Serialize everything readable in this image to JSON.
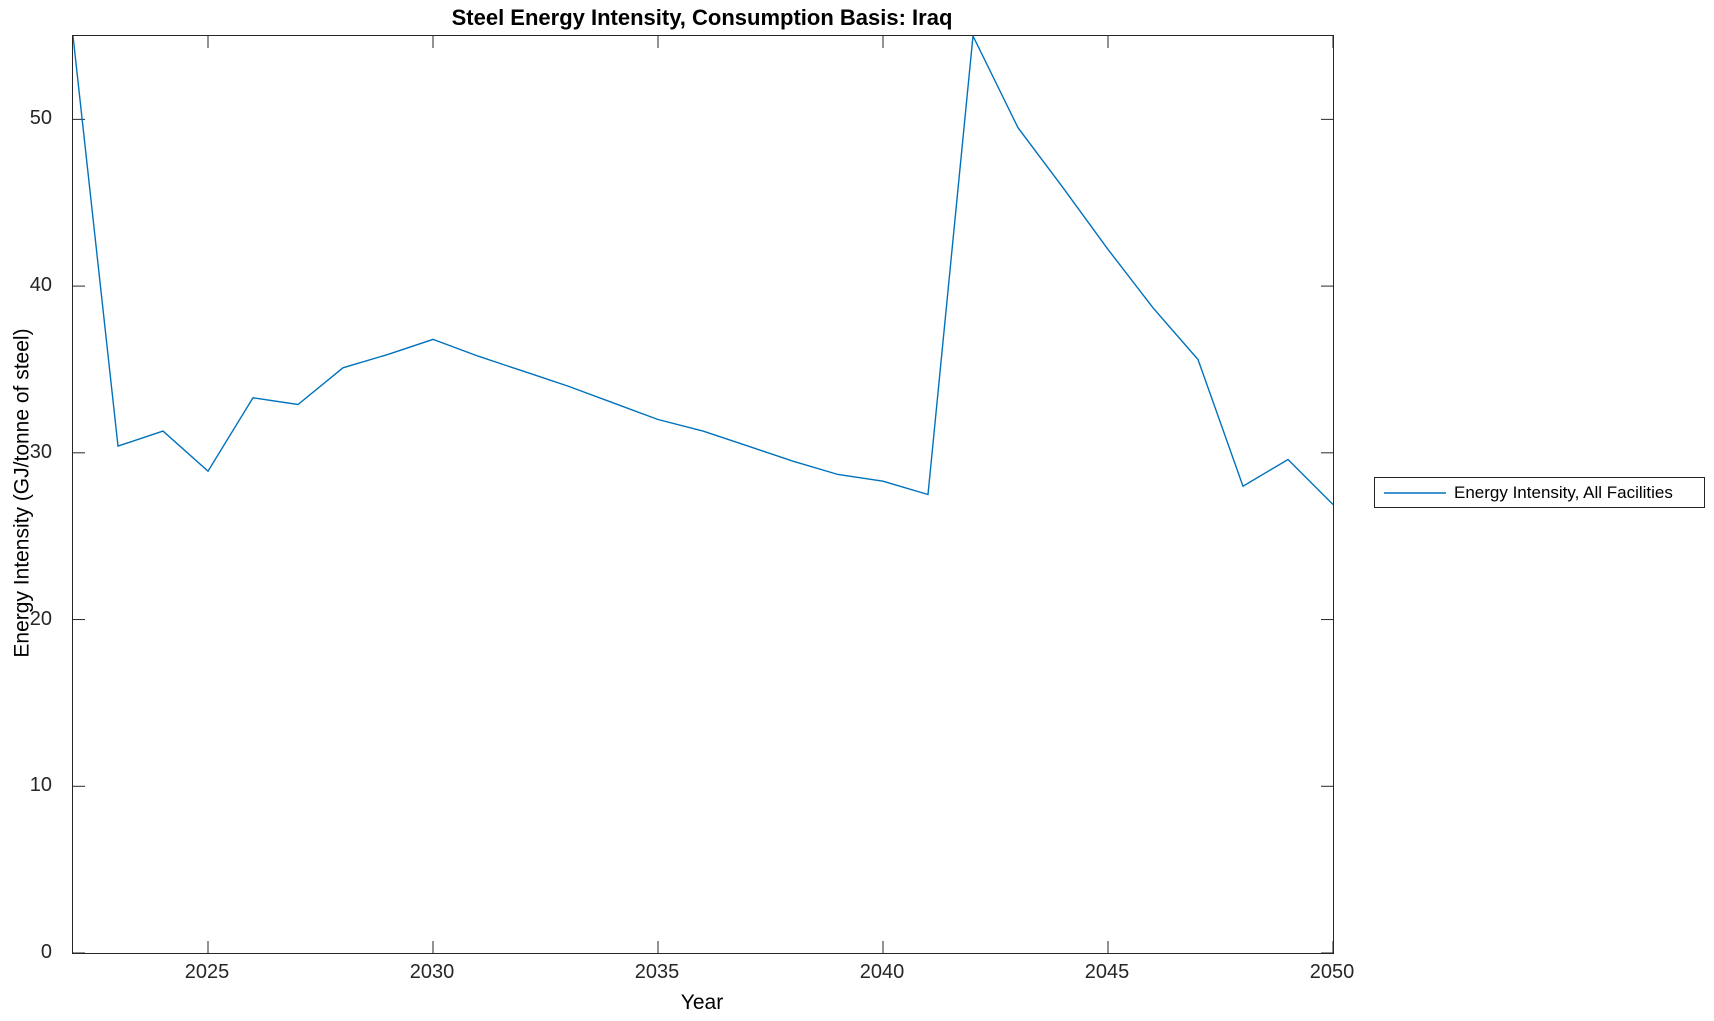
{
  "colors": {
    "line": "#0072BD",
    "axis": "#262626",
    "text": "#000000",
    "background": "#FFFFFF"
  },
  "chart_data": {
    "type": "line",
    "title": "Steel Energy Intensity, Consumption Basis: Iraq",
    "xlabel": "Year",
    "ylabel": "Energy Intensity (GJ/tonne of steel)",
    "xlim": [
      2022,
      2050
    ],
    "ylim": [
      0,
      55
    ],
    "xticks": [
      2025,
      2030,
      2035,
      2040,
      2045,
      2050
    ],
    "yticks": [
      0,
      10,
      20,
      30,
      40,
      50
    ],
    "grid": false,
    "legend": {
      "position": "right-outside",
      "entries": [
        "Energy Intensity, All Facilities"
      ]
    },
    "x": [
      2022,
      2023,
      2024,
      2025,
      2026,
      2027,
      2028,
      2029,
      2030,
      2031,
      2032,
      2033,
      2034,
      2035,
      2036,
      2037,
      2038,
      2039,
      2040,
      2041,
      2042,
      2043,
      2044,
      2045,
      2046,
      2047,
      2048,
      2049,
      2050
    ],
    "series": [
      {
        "name": "Energy Intensity, All Facilities",
        "color": "#0072BD",
        "values": [
          55.0,
          30.4,
          31.3,
          28.9,
          33.3,
          32.9,
          35.1,
          35.9,
          36.8,
          35.8,
          34.9,
          34.0,
          33.0,
          32.0,
          31.3,
          30.4,
          29.5,
          28.7,
          28.3,
          27.5,
          55.0,
          49.5,
          45.9,
          42.2,
          38.7,
          35.6,
          28.0,
          29.6,
          26.9
        ]
      }
    ]
  }
}
